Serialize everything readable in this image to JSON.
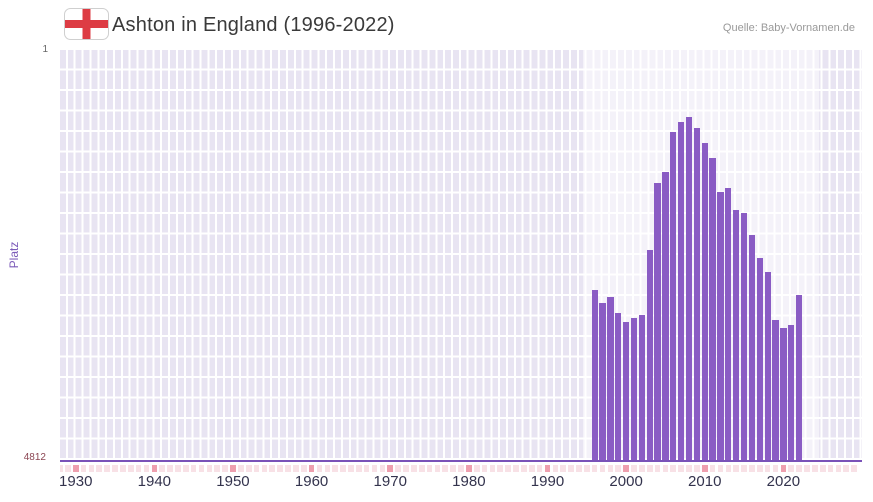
{
  "header": {
    "title": "Ashton in England (1996-2022)",
    "source": "Quelle: Baby-Vornamen.de"
  },
  "axes": {
    "y_label": "Platz",
    "y_top_tick": "1",
    "y_bottom_tick": "4812",
    "x_ticks": [
      1930,
      1940,
      1950,
      1960,
      1970,
      1980,
      1990,
      2000,
      2010,
      2020
    ]
  },
  "colors": {
    "bar": "#8a5cc4",
    "axis": "#7a52b8",
    "plot_bg": "#e8e4f2",
    "grid": "#ffffff",
    "highlight": "rgba(255,255,255,0.5)",
    "tick_year": "#f8e1e6",
    "tick_decade": "#ee9fae",
    "title_color": "#3a3a3a",
    "source_color": "#999999",
    "x_tick_color": "#33334d",
    "y_label_color": "#7b5ab8",
    "y_top_tick_color": "#666666",
    "y_bottom_tick_color": "#8b4552",
    "flag_red": "#dd3c44"
  },
  "chart_data": {
    "type": "bar",
    "title": "Ashton in England (1996-2022)",
    "xlabel": "",
    "ylabel": "Platz",
    "x_domain": [
      1928,
      2030
    ],
    "y_domain": [
      1,
      4812
    ],
    "y_axis_is_inverted_rank": true,
    "grid": true,
    "highlight_region": [
      1994.5,
      2024.5
    ],
    "years": [
      1996,
      1997,
      1998,
      1999,
      2000,
      2001,
      2002,
      2003,
      2004,
      2005,
      2006,
      2007,
      2008,
      2009,
      2010,
      2011,
      2012,
      2013,
      2014,
      2015,
      2016,
      2017,
      2018,
      2019,
      2020,
      2021,
      2022
    ],
    "ranks": [
      2820,
      2975,
      2905,
      3090,
      3195,
      3150,
      3110,
      2350,
      1565,
      1435,
      965,
      850,
      790,
      915,
      1090,
      1270,
      1670,
      1620,
      1880,
      1915,
      2170,
      2445,
      2610,
      3170,
      3265,
      3230,
      2870
    ]
  }
}
